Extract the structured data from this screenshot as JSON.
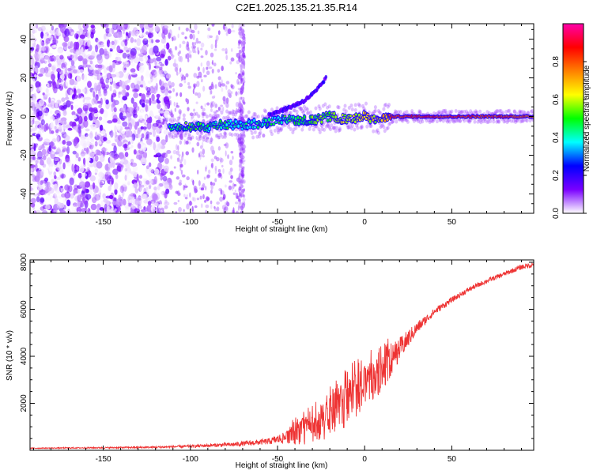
{
  "figure_title": "C2E1.2025.135.21.35.R14",
  "colors": {
    "snr_line": "#ee3333",
    "frame": "#000000",
    "background": "#ffffff"
  },
  "chart_data": [
    {
      "type": "heatmap",
      "title": "C2E1.2025.135.21.35.R14",
      "xlabel": "Height of straight line (km)",
      "ylabel": "Frequency (Hz)",
      "xlim": [
        -192,
        97
      ],
      "ylim": [
        -50,
        48
      ],
      "x_ticks": [
        -150,
        -100,
        -50,
        0,
        50
      ],
      "y_ticks": [
        -40,
        -20,
        0,
        20,
        40
      ],
      "colorbar": {
        "label": "Normalized spectral amplitude",
        "range": [
          0.0,
          1.0
        ],
        "ticks": [
          0.0,
          0.2,
          0.4,
          0.6,
          0.8
        ],
        "colormap": [
          "#ffffff",
          "#7a00ff",
          "#0000ff",
          "#00ffff",
          "#00ff00",
          "#ffff00",
          "#ff8000",
          "#ff0000",
          "#ff00aa"
        ]
      },
      "features": {
        "main_trace": [
          {
            "x": -112,
            "y": -4.5,
            "amp": 0.45
          },
          {
            "x": -100,
            "y": -5,
            "amp": 0.5
          },
          {
            "x": -90,
            "y": -5.5,
            "amp": 0.45
          },
          {
            "x": -80,
            "y": -4,
            "amp": 0.45
          },
          {
            "x": -70,
            "y": -4.5,
            "amp": 0.4
          },
          {
            "x": -60,
            "y": -3.5,
            "amp": 0.4
          },
          {
            "x": -50,
            "y": -2,
            "amp": 0.45
          },
          {
            "x": -40,
            "y": -1.5,
            "amp": 0.5
          },
          {
            "x": -30,
            "y": -2,
            "amp": 0.5
          },
          {
            "x": -20,
            "y": 0,
            "amp": 0.55
          },
          {
            "x": -10,
            "y": -1.5,
            "amp": 0.6
          },
          {
            "x": 0,
            "y": 0,
            "amp": 0.65
          },
          {
            "x": 8,
            "y": -2,
            "amp": 0.6
          },
          {
            "x": 15,
            "y": 0,
            "amp": 0.8
          },
          {
            "x": 30,
            "y": 0,
            "amp": 0.85
          },
          {
            "x": 50,
            "y": 0,
            "amp": 0.85
          },
          {
            "x": 70,
            "y": 0,
            "amp": 0.82
          },
          {
            "x": 97,
            "y": 0,
            "amp": 0.8
          }
        ],
        "upper_branch": [
          {
            "x": -55,
            "y": 1
          },
          {
            "x": -45,
            "y": 4
          },
          {
            "x": -35,
            "y": 8
          },
          {
            "x": -28,
            "y": 13
          },
          {
            "x": -22,
            "y": 20
          }
        ],
        "noise_region_x": [
          -192,
          -112
        ],
        "sparse_region_x": [
          -112,
          -70
        ]
      }
    },
    {
      "type": "line",
      "xlabel": "Height of straight line (km)",
      "ylabel": "SNR (10 * v/v)",
      "xlim": [
        -192,
        97
      ],
      "ylim": [
        0,
        8100
      ],
      "x_ticks": [
        -150,
        -100,
        -50,
        0,
        50
      ],
      "y_ticks": [
        2000,
        4000,
        6000,
        8000
      ],
      "series": [
        {
          "envelope_x": [
            -192,
            -150,
            -120,
            -100,
            -75,
            -55,
            -45,
            -40,
            -30,
            -20,
            -10,
            0,
            10,
            20,
            30,
            40,
            50,
            60,
            70,
            80,
            90,
            97
          ],
          "envelope_mean": [
            90,
            110,
            130,
            170,
            250,
            380,
            550,
            700,
            950,
            1400,
            2000,
            2700,
            3300,
            4300,
            5200,
            5900,
            6400,
            6850,
            7200,
            7500,
            7800,
            7900
          ],
          "envelope_spread": [
            20,
            30,
            40,
            60,
            90,
            130,
            250,
            450,
            700,
            900,
            1000,
            900,
            800,
            500,
            250,
            150,
            120,
            110,
            100,
            100,
            110,
            120
          ]
        }
      ]
    }
  ]
}
